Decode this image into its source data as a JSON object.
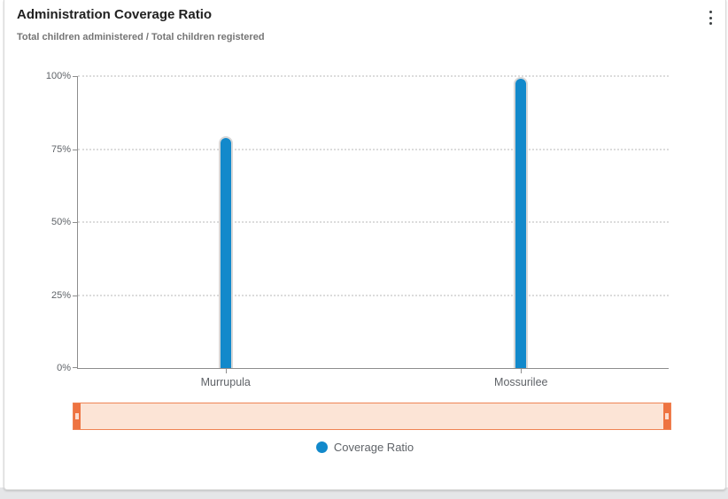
{
  "card": {
    "title": "Administration Coverage Ratio",
    "subtitle": "Total children administered / Total children registered",
    "menu_icon": "kebab-menu-icon"
  },
  "chart_data": {
    "type": "bar",
    "title": "Administration Coverage Ratio",
    "subtitle": "Total children administered / Total children registered",
    "categories": [
      "Murrupula",
      "Mossurilee"
    ],
    "series": [
      {
        "name": "Coverage Ratio",
        "values": [
          79.4,
          99.7
        ],
        "color": "#1289cb"
      }
    ],
    "xlabel": "",
    "ylabel": "",
    "ylim": [
      0,
      100
    ],
    "ytick_values": [
      0,
      25,
      50,
      75,
      100
    ],
    "yticks": [
      "0%",
      "25%",
      "50%",
      "75%",
      "100%"
    ],
    "grid": "horizontal-dotted",
    "legend": {
      "position": "bottom",
      "items": [
        {
          "label": "Coverage Ratio",
          "color": "#1289cb"
        }
      ]
    }
  },
  "slider": {
    "selected_range_percent": [
      0,
      100
    ],
    "fill_color": "#fce4d6",
    "accent_color": "#ee7341"
  },
  "colors": {
    "bar": "#1289cb",
    "card_background": "#ffffff",
    "page_background": "#e5e6e8",
    "axis": "#8d8d8d",
    "gridline": "#dcdcdc",
    "title_text": "#212121",
    "subtitle_text": "#757575",
    "tick_text": "#5f6368"
  }
}
